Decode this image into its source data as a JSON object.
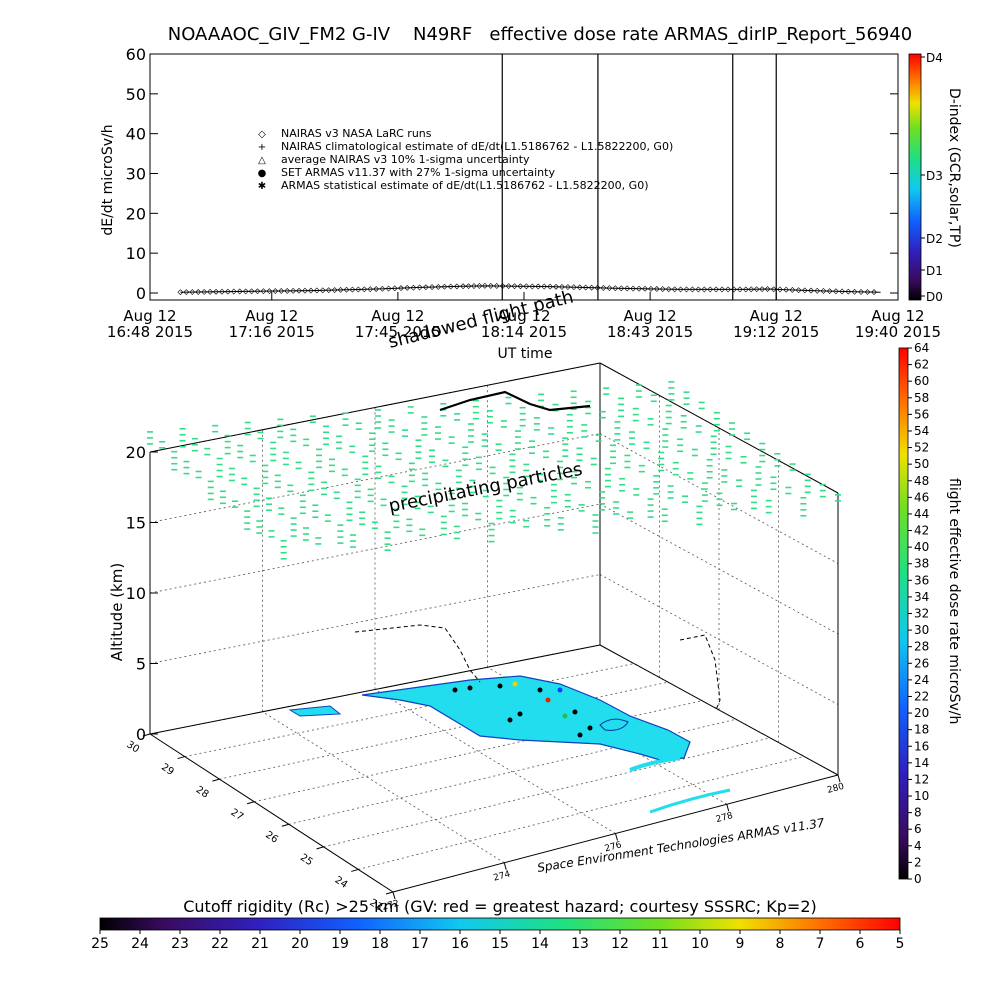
{
  "title": "NOAAAOC_GIV_FM2 G-IV    N49RF   effective dose rate ARMAS_dirIP_Report_56940",
  "timeseries": {
    "ylabel": "dE/dt microSv/h",
    "xlabel": "UT time",
    "right_axis_label": "D-index (GCR,solar,TP)",
    "overlay_label": "shadowed flight path",
    "legend": [
      {
        "symbol": "◇",
        "label": "NAIRAS v3 NASA LaRC runs"
      },
      {
        "symbol": "+",
        "label": "NAIRAS climatological estimate of dE/dt(L1.5186762 - L1.5822200, G0)"
      },
      {
        "symbol": "△",
        "label": "average NAIRAS v3 10% 1-sigma uncertainty"
      },
      {
        "symbol": "●",
        "label": "SET ARMAS v11.37 with 27% 1-sigma uncertainty"
      },
      {
        "symbol": "✱",
        "label": "ARMAS statistical estimate of dE/dt(L1.5186762 - L1.5822200, G0)"
      }
    ],
    "time_ticks": [
      {
        "l1": "Aug 12",
        "l2": "16:48 2015"
      },
      {
        "l1": "Aug 12",
        "l2": "17:16 2015"
      },
      {
        "l1": "Aug 12",
        "l2": "17:45 2015"
      },
      {
        "l1": "Aug 12",
        "l2": "18:14 2015"
      },
      {
        "l1": "Aug 12",
        "l2": "18:43 2015"
      },
      {
        "l1": "Aug 12",
        "l2": "19:12 2015"
      },
      {
        "l1": "Aug 12",
        "l2": "19:40 2015"
      }
    ],
    "dindex_labels": [
      "D4",
      "D3",
      "D2",
      "D1",
      "D0"
    ]
  },
  "chart_data": [
    {
      "type": "line",
      "title": "NOAAAOC_GIV_FM2 G-IV    N49RF   effective dose rate ARMAS_dirIP_Report_56940",
      "xlabel": "UT time",
      "ylabel": "dE/dt microSv/h",
      "ylim": [
        0,
        60
      ],
      "yticks": [
        0,
        10,
        20,
        30,
        40,
        50,
        60
      ],
      "xlim": [
        "2015-08-12 16:48",
        "2015-08-12 19:40"
      ],
      "xticks": [
        "16:48",
        "17:16",
        "17:45",
        "18:14",
        "18:43",
        "19:12",
        "19:40"
      ],
      "vertical_lines": [
        "18:09",
        "18:31",
        "19:02",
        "19:12"
      ],
      "series": [
        {
          "name": "NAIRAS v3 NASA LaRC runs",
          "x": [
            "16:55",
            "17:10",
            "17:25",
            "17:40",
            "17:50",
            "18:00",
            "18:05",
            "18:20",
            "18:35",
            "18:50",
            "19:05",
            "19:10",
            "19:20",
            "19:30",
            "19:36"
          ],
          "y": [
            0.2,
            0.4,
            0.6,
            1.0,
            1.4,
            1.7,
            1.8,
            1.6,
            1.2,
            0.9,
            0.9,
            1.0,
            0.6,
            0.3,
            0.2
          ]
        }
      ]
    },
    {
      "type": "scatter",
      "zlabel": "Altitude (km)",
      "zlim": [
        0,
        20
      ],
      "zticks": [
        0,
        5,
        10,
        15,
        20
      ],
      "lat_ticks": [
        23,
        24,
        25,
        26,
        27,
        28,
        29,
        30
      ],
      "lon_ticks": [
        -272,
        -274,
        -276,
        -278,
        -280
      ],
      "lon_tick_labels": [
        "272",
        "274",
        "276",
        "278",
        "280"
      ],
      "annotation": "precipitating particles",
      "note": "Space Environment Technologies ARMAS v11.37"
    }
  ],
  "colorbar_right": {
    "label": "flight effective dose rate microSv/h",
    "ticks": [
      0,
      2,
      4,
      6,
      8,
      10,
      12,
      14,
      16,
      18,
      20,
      22,
      24,
      26,
      28,
      30,
      32,
      34,
      36,
      38,
      40,
      42,
      44,
      46,
      48,
      50,
      52,
      54,
      56,
      58,
      60,
      62,
      64
    ]
  },
  "colorbar_bottom": {
    "label": "Cutoff rigidity (Rc) >25 km (GV: red = greatest hazard; courtesy SSSRC; Kp=2)",
    "ticks": [
      "25",
      "24",
      "23",
      "22",
      "21",
      "20",
      "19",
      "18",
      "17",
      "16",
      "15",
      "14",
      "13",
      "12",
      "11",
      "10",
      "9",
      "8",
      "7",
      "6",
      "5"
    ]
  },
  "colors": {
    "particle": "#33dd88",
    "land": "#22ddee",
    "accent_red": "#ee2200"
  }
}
